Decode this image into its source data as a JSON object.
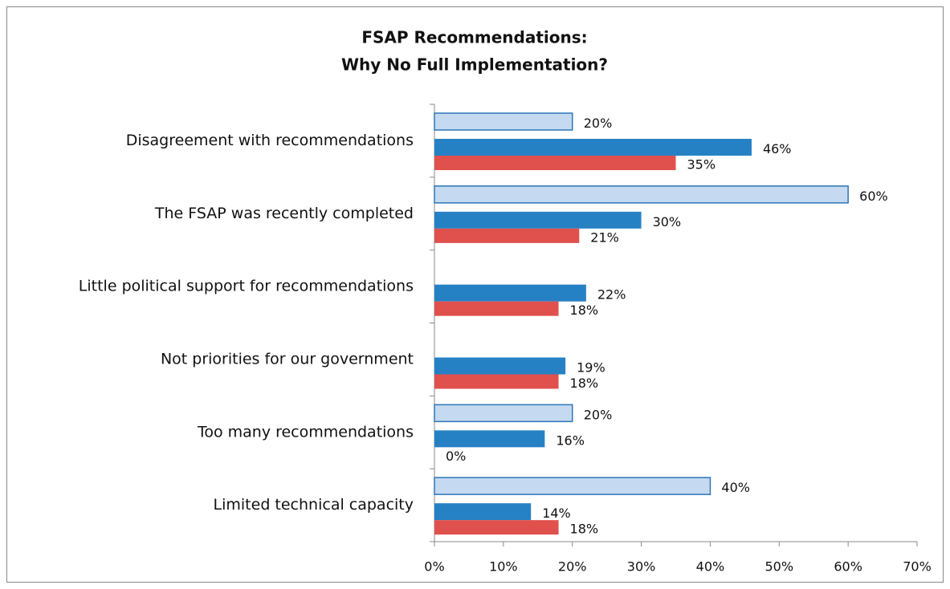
{
  "chart_data": {
    "type": "hbar",
    "title": [
      "FSAP Recommendations:",
      "Why No Full Implementation?"
    ],
    "categories": [
      "Disagreement with recommendations",
      "The FSAP was recently completed",
      "Little political support for recommendations",
      "Not priorities for our government",
      "Too many recommendations",
      "Limited technical capacity"
    ],
    "series": [
      {
        "color": "#c5daf0",
        "stroke": "#2e75b6",
        "values": [
          20,
          60,
          null,
          null,
          20,
          40
        ],
        "value_labels": [
          "20%",
          "60%",
          null,
          null,
          "20%",
          "40%"
        ]
      },
      {
        "color": "#2681c4",
        "values": [
          46,
          30,
          22,
          19,
          16,
          14
        ],
        "value_labels": [
          "46%",
          "30%",
          "22%",
          "19%",
          "16%",
          "14%"
        ]
      },
      {
        "color": "#e0504d",
        "values": [
          35,
          21,
          18,
          18,
          0,
          18
        ],
        "value_labels": [
          "35%",
          "21%",
          "18%",
          "18%",
          "0%",
          "18%"
        ]
      }
    ],
    "xlim": [
      0,
      70
    ],
    "xticks": [
      {
        "value": 0,
        "label": "0%"
      },
      {
        "value": 10,
        "label": "10%"
      },
      {
        "value": 20,
        "label": "20%"
      },
      {
        "value": 30,
        "label": "30%"
      },
      {
        "value": 40,
        "label": "40%"
      },
      {
        "value": 50,
        "label": "50%"
      },
      {
        "value": 60,
        "label": "60%"
      },
      {
        "value": 70,
        "label": "70%"
      }
    ]
  }
}
